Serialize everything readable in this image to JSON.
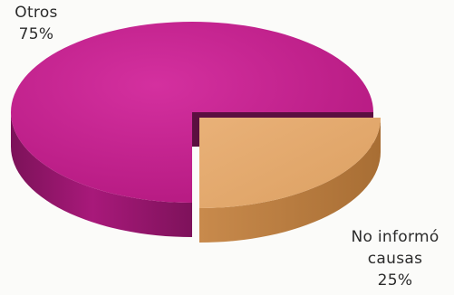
{
  "chart_data": {
    "type": "pie",
    "style": "3d-exploded",
    "categories": [
      "Otros",
      "No informó causas"
    ],
    "values": [
      75,
      25
    ],
    "value_labels": [
      "75%",
      "25%"
    ],
    "colors": [
      "#c21d8e",
      "#e2a868"
    ],
    "side_colors": [
      "#8d1668",
      "#b67a3c"
    ],
    "inner_wall_color": "#5b0f40",
    "title": "",
    "legend": "none"
  },
  "labels": {
    "otros_name": "Otros",
    "otros_value": "75%",
    "noinf_line1": "No informó",
    "noinf_line2": "causas",
    "noinf_value": "25%"
  }
}
